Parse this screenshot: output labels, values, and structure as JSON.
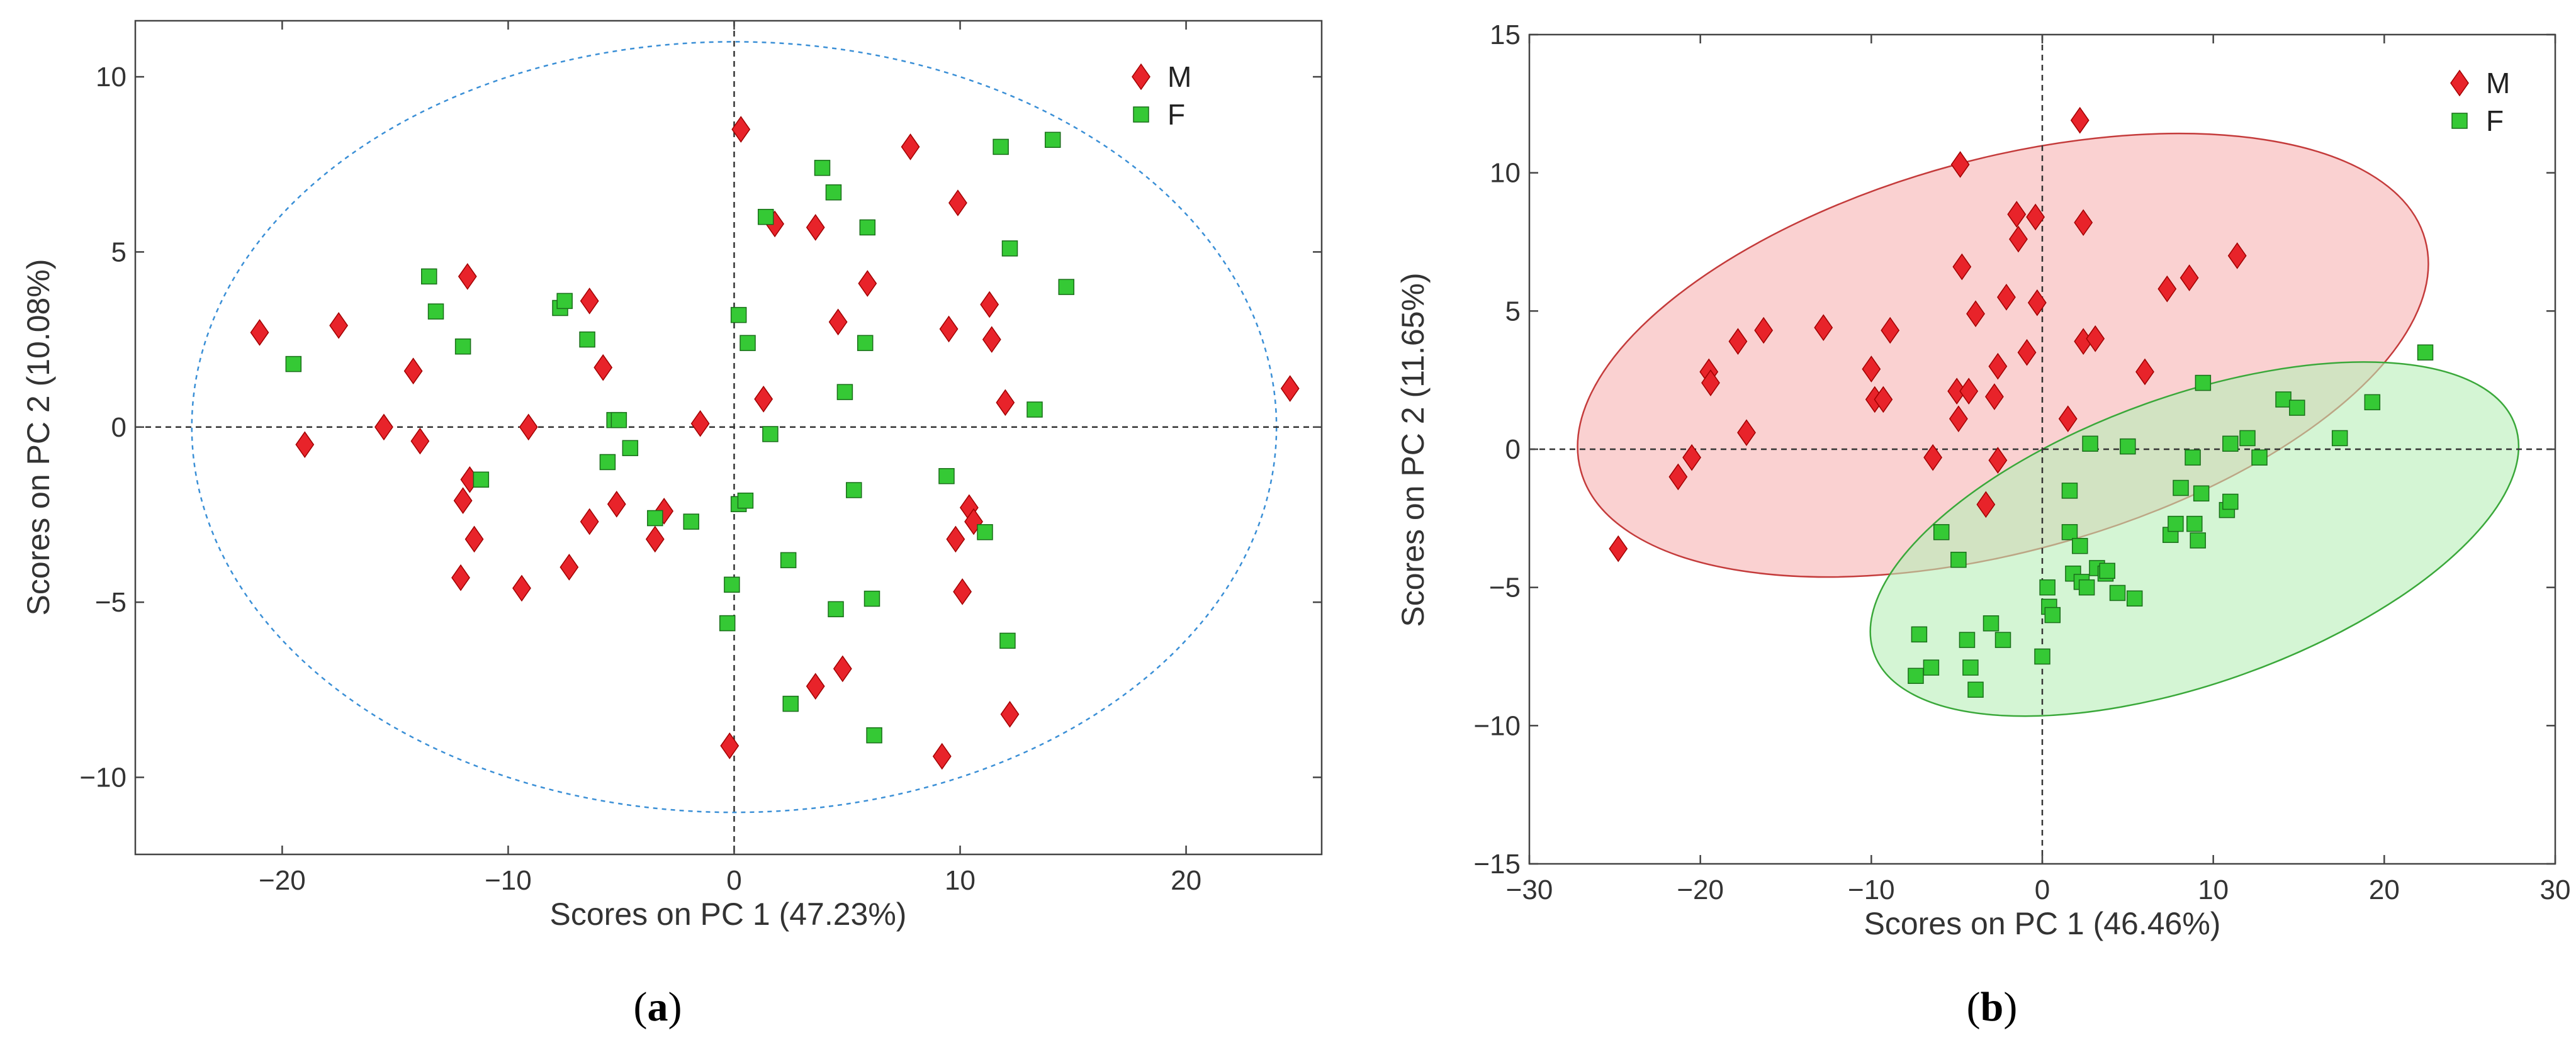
{
  "colors": {
    "M": "#e8232a",
    "F": "#35c935",
    "M_ellipse": "#f6b3b3",
    "F_ellipse": "#b8efb8",
    "circle": "#3a8fd6"
  },
  "chart_data": [
    {
      "type": "scatter",
      "panel_label": "(a)",
      "panel_letter": "a",
      "xlabel": "Scores on PC 1 (47.23%)",
      "ylabel": "Scores on PC 2 (10.08%)",
      "xlim": [
        -26.5,
        26
      ],
      "ylim": [
        -12.2,
        11.6
      ],
      "xticks": [
        -20,
        -10,
        0,
        10,
        20
      ],
      "yticks": [
        -10,
        -5,
        0,
        5,
        10
      ],
      "xtick_labels": [
        "−20",
        "−10",
        "0",
        "10",
        "20"
      ],
      "ytick_labels": [
        "−10",
        "−5",
        "0",
        "5",
        "10"
      ],
      "legend": [
        "M",
        "F"
      ],
      "legend_position": "top-right",
      "confidence_ellipse": {
        "cx": 0,
        "cy": 0,
        "rx": 24,
        "ry": 11
      },
      "series": [
        {
          "name": "M",
          "marker": "diamond",
          "points": [
            [
              -21,
              2.7
            ],
            [
              -19,
              -0.5
            ],
            [
              -17.5,
              2.9
            ],
            [
              -15.5,
              0
            ],
            [
              -14.2,
              1.6
            ],
            [
              -13.9,
              -0.4
            ],
            [
              -12,
              -2.1
            ],
            [
              -11.8,
              4.3
            ],
            [
              -11.5,
              -3.2
            ],
            [
              -12.1,
              -4.3
            ],
            [
              -11.7,
              -1.5
            ],
            [
              -9.4,
              -4.6
            ],
            [
              -9.1,
              0
            ],
            [
              -7.3,
              -4
            ],
            [
              -6.4,
              3.6
            ],
            [
              -6.4,
              -2.7
            ],
            [
              -5.8,
              1.7
            ],
            [
              -5.2,
              -2.2
            ],
            [
              -3.5,
              -3.2
            ],
            [
              -3.1,
              -2.4
            ],
            [
              -1.5,
              0.1
            ],
            [
              -0.2,
              -9.1
            ],
            [
              0.3,
              8.5
            ],
            [
              1.3,
              0.8
            ],
            [
              1.8,
              5.8
            ],
            [
              3.6,
              -7.4
            ],
            [
              3.6,
              5.7
            ],
            [
              4.6,
              3
            ],
            [
              4.8,
              -6.9
            ],
            [
              5.9,
              4.1
            ],
            [
              7.8,
              8
            ],
            [
              9.2,
              -9.4
            ],
            [
              9.5,
              2.8
            ],
            [
              9.8,
              -3.2
            ],
            [
              9.9,
              6.4
            ],
            [
              10.1,
              -4.7
            ],
            [
              10.4,
              -2.3
            ],
            [
              10.6,
              -2.7
            ],
            [
              11.3,
              3.5
            ],
            [
              11.4,
              2.5
            ],
            [
              12,
              0.7
            ],
            [
              12.2,
              -8.2
            ],
            [
              24.6,
              1.1
            ]
          ]
        },
        {
          "name": "F",
          "marker": "square",
          "points": [
            [
              -19.5,
              1.8
            ],
            [
              -13.5,
              4.3
            ],
            [
              -13.2,
              3.3
            ],
            [
              -12,
              2.3
            ],
            [
              -11.2,
              -1.5
            ],
            [
              -7.7,
              3.4
            ],
            [
              -7.5,
              3.6
            ],
            [
              -6.5,
              2.5
            ],
            [
              -5.6,
              -1
            ],
            [
              -5.3,
              0.2
            ],
            [
              -5.1,
              0.2
            ],
            [
              -4.6,
              -0.6
            ],
            [
              -3.5,
              -2.6
            ],
            [
              -1.9,
              -2.7
            ],
            [
              -0.3,
              -5.6
            ],
            [
              -0.1,
              -4.5
            ],
            [
              0.2,
              -2.2
            ],
            [
              0.2,
              3.2
            ],
            [
              0.5,
              -2.1
            ],
            [
              0.6,
              2.4
            ],
            [
              1.4,
              6
            ],
            [
              1.6,
              -0.2
            ],
            [
              2.4,
              -3.8
            ],
            [
              2.5,
              -7.9
            ],
            [
              3.9,
              7.4
            ],
            [
              4.4,
              6.7
            ],
            [
              4.5,
              -5.2
            ],
            [
              4.9,
              1
            ],
            [
              5.3,
              -1.8
            ],
            [
              5.8,
              2.4
            ],
            [
              5.9,
              5.7
            ],
            [
              6.1,
              -4.9
            ],
            [
              6.2,
              -8.8
            ],
            [
              9.4,
              -1.4
            ],
            [
              11.1,
              -3
            ],
            [
              11.8,
              8
            ],
            [
              12.1,
              -6.1
            ],
            [
              12.2,
              5.1
            ],
            [
              13.3,
              0.5
            ],
            [
              14.1,
              8.2
            ],
            [
              14.7,
              4
            ]
          ]
        }
      ]
    },
    {
      "type": "scatter",
      "panel_label": "(b)",
      "panel_letter": "b",
      "xlabel": "Scores on PC 1 (46.46%)",
      "ylabel": "Scores on PC 2 (11.65%)",
      "xlim": [
        -30,
        30
      ],
      "ylim": [
        -15,
        15
      ],
      "xticks": [
        -30,
        -20,
        -10,
        0,
        10,
        20,
        30
      ],
      "yticks": [
        -15,
        -10,
        -5,
        0,
        5,
        10,
        15
      ],
      "xtick_labels": [
        "−30",
        "−20",
        "−10",
        "0",
        "10",
        "20",
        "30"
      ],
      "ytick_labels": [
        "−15",
        "−10",
        "−5",
        "0",
        "5",
        "10",
        "15"
      ],
      "legend": [
        "M",
        "F"
      ],
      "legend_position": "top-right",
      "confidence_ellipses": [
        {
          "group": "M",
          "cx": -2.3,
          "cy": 3.4,
          "rx": 25.6,
          "ry": 7.1,
          "angle_deg": 15.3
        },
        {
          "group": "F",
          "cx": 8.9,
          "cy": -3.25,
          "rx": 19.9,
          "ry": 5.2,
          "angle_deg": 19.6
        }
      ],
      "series": [
        {
          "name": "M",
          "marker": "diamond",
          "points": [
            [
              -24.8,
              -3.6
            ],
            [
              -21.3,
              -1
            ],
            [
              -20.5,
              -0.3
            ],
            [
              -19.5,
              2.8
            ],
            [
              -19.4,
              2.4
            ],
            [
              -17.8,
              3.9
            ],
            [
              -17.3,
              0.6
            ],
            [
              -16.3,
              4.3
            ],
            [
              -12.8,
              4.4
            ],
            [
              -10,
              2.9
            ],
            [
              -9.8,
              1.8
            ],
            [
              -9.3,
              1.8
            ],
            [
              -8.9,
              4.3
            ],
            [
              -6.4,
              -0.3
            ],
            [
              -5,
              2.1
            ],
            [
              -4.9,
              1.1
            ],
            [
              -4.8,
              10.3
            ],
            [
              -4.7,
              6.6
            ],
            [
              -4.3,
              2.1
            ],
            [
              -3.9,
              4.9
            ],
            [
              -3.3,
              -2
            ],
            [
              -2.8,
              1.9
            ],
            [
              -2.6,
              3
            ],
            [
              -2.6,
              -0.4
            ],
            [
              -2.1,
              5.5
            ],
            [
              -1.5,
              8.5
            ],
            [
              -1.4,
              7.6
            ],
            [
              -0.9,
              3.5
            ],
            [
              -0.4,
              8.4
            ],
            [
              -0.3,
              5.3
            ],
            [
              1.5,
              1.1
            ],
            [
              2.2,
              11.9
            ],
            [
              2.4,
              3.9
            ],
            [
              2.4,
              8.2
            ],
            [
              3.1,
              4
            ],
            [
              6,
              2.8
            ],
            [
              7.3,
              5.8
            ],
            [
              8.6,
              6.2
            ],
            [
              11.4,
              7
            ]
          ]
        },
        {
          "name": "F",
          "marker": "square",
          "points": [
            [
              -7.4,
              -8.2
            ],
            [
              -7.2,
              -6.7
            ],
            [
              -6.5,
              -7.9
            ],
            [
              -5.9,
              -3
            ],
            [
              -4.9,
              -4
            ],
            [
              -4.4,
              -6.9
            ],
            [
              -4.2,
              -7.9
            ],
            [
              -3.9,
              -8.7
            ],
            [
              -3,
              -6.3
            ],
            [
              -2.3,
              -6.9
            ],
            [
              0,
              -7.5
            ],
            [
              0.3,
              -5
            ],
            [
              0.4,
              -5.7
            ],
            [
              0.6,
              -6
            ],
            [
              1.6,
              -3
            ],
            [
              1.6,
              -1.5
            ],
            [
              1.8,
              -4.5
            ],
            [
              2.2,
              -3.5
            ],
            [
              2.3,
              -4.8
            ],
            [
              2.6,
              -5
            ],
            [
              2.8,
              0.2
            ],
            [
              3.2,
              -4.3
            ],
            [
              3.7,
              -4.5
            ],
            [
              3.8,
              -4.4
            ],
            [
              4.4,
              -5.2
            ],
            [
              5,
              0.1
            ],
            [
              5.4,
              -5.4
            ],
            [
              7.5,
              -3.1
            ],
            [
              7.8,
              -2.7
            ],
            [
              8.1,
              -1.4
            ],
            [
              8.8,
              -0.3
            ],
            [
              8.9,
              -2.7
            ],
            [
              9.1,
              -3.3
            ],
            [
              9.3,
              -1.6
            ],
            [
              9.4,
              2.4
            ],
            [
              10.8,
              -2.2
            ],
            [
              11,
              0.2
            ],
            [
              11,
              -1.9
            ],
            [
              12,
              0.4
            ],
            [
              12.7,
              -0.3
            ],
            [
              14.1,
              1.8
            ],
            [
              14.9,
              1.5
            ],
            [
              17.4,
              0.4
            ],
            [
              19.3,
              1.7
            ],
            [
              22.4,
              3.5
            ]
          ]
        }
      ]
    }
  ]
}
